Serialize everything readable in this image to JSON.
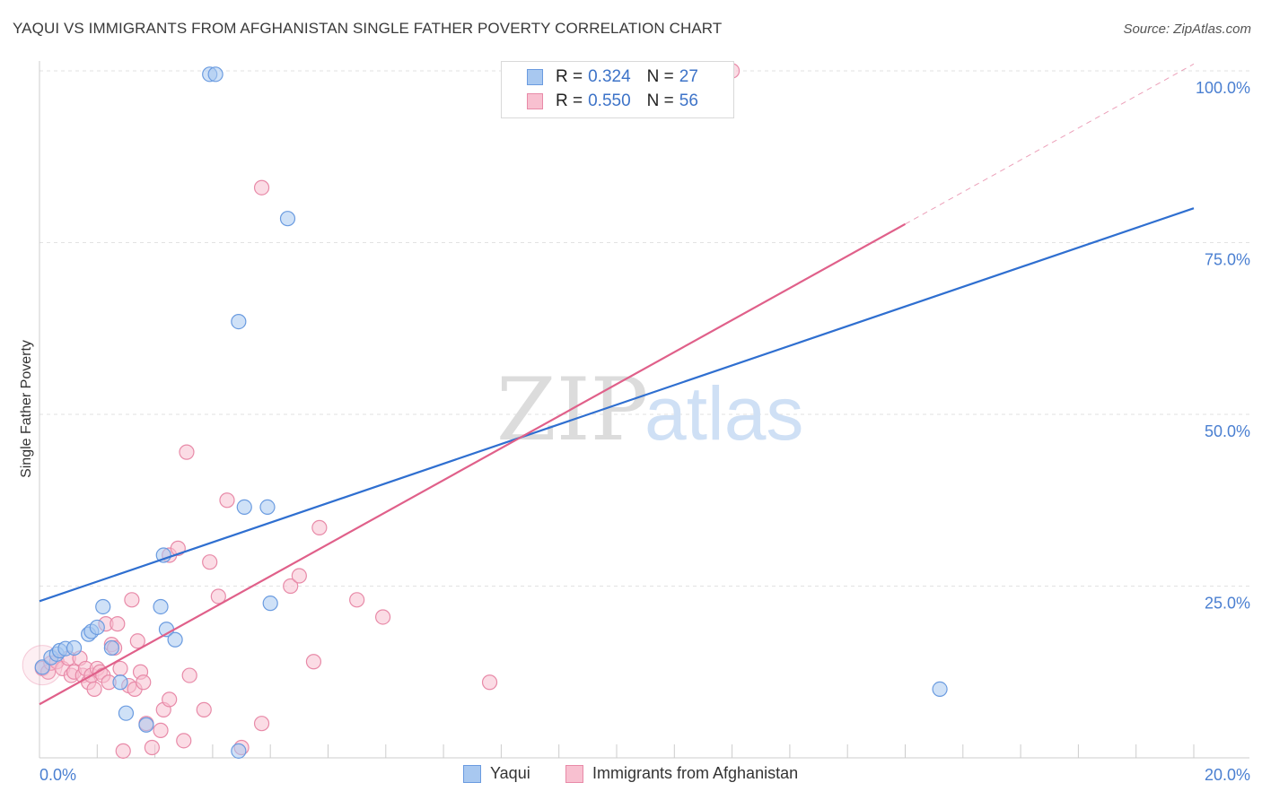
{
  "title": "YAQUI VS IMMIGRANTS FROM AFGHANISTAN SINGLE FATHER POVERTY CORRELATION CHART",
  "source": "Source: ZipAtlas.com",
  "watermark": {
    "zip": "ZIP",
    "atlas": "atlas"
  },
  "legend": {
    "rows": [
      {
        "r_label": "R =",
        "r_value": "0.324",
        "n_label": "N =",
        "n_value": "27",
        "color": "#a8c8f0",
        "border": "#6a9be0"
      },
      {
        "r_label": "R =",
        "r_value": "0.550",
        "n_label": "N =",
        "n_value": "56",
        "color": "#f8c0d0",
        "border": "#e88aa8"
      }
    ]
  },
  "bottom_legend": {
    "yaqui": "Yaqui",
    "afghanistan": "Immigrants from Afghanistan"
  },
  "colors": {
    "yaqui_fill": "#a8c8f0",
    "yaqui_stroke": "#6a9be0",
    "yaqui_line": "#2f6fd0",
    "afg_fill": "#f8c0d0",
    "afg_stroke": "#e88aa8",
    "afg_line": "#e0608a",
    "tick": "#4a7fd1"
  },
  "chart_data": {
    "type": "scatter",
    "title": "YAQUI VS IMMIGRANTS FROM AFGHANISTAN SINGLE FATHER POVERTY CORRELATION CHART",
    "xlabel": "",
    "ylabel": "Single Father Poverty",
    "xlim": [
      0,
      20
    ],
    "ylim": [
      0,
      100
    ],
    "x_ticks": [
      {
        "value": 0,
        "label": "0.0%"
      },
      {
        "value": 20,
        "label": "20.0%"
      }
    ],
    "y_ticks": [
      {
        "value": 25,
        "label": "25.0%"
      },
      {
        "value": 50,
        "label": "50.0%"
      },
      {
        "value": 75,
        "label": "75.0%"
      },
      {
        "value": 100,
        "label": "100.0%"
      }
    ],
    "series": [
      {
        "name": "Yaqui",
        "points": [
          [
            0.05,
            13.2
          ],
          [
            0.2,
            14.6
          ],
          [
            0.3,
            15.1
          ],
          [
            0.35,
            15.6
          ],
          [
            0.45,
            15.9
          ],
          [
            0.6,
            16.0
          ],
          [
            0.85,
            18.0
          ],
          [
            0.9,
            18.4
          ],
          [
            1.0,
            19.0
          ],
          [
            1.1,
            22.0
          ],
          [
            1.25,
            16.0
          ],
          [
            1.4,
            11.0
          ],
          [
            1.5,
            6.5
          ],
          [
            1.85,
            4.8
          ],
          [
            2.1,
            22.0
          ],
          [
            2.2,
            18.7
          ],
          [
            2.35,
            17.2
          ],
          [
            2.15,
            29.5
          ],
          [
            2.95,
            99.5
          ],
          [
            3.05,
            99.5
          ],
          [
            3.45,
            1.0
          ],
          [
            3.45,
            63.5
          ],
          [
            3.55,
            36.5
          ],
          [
            3.95,
            36.5
          ],
          [
            4.0,
            22.5
          ],
          [
            4.3,
            78.5
          ],
          [
            15.6,
            10.0
          ]
        ],
        "trend": {
          "x": [
            0,
            20
          ],
          "y": [
            22.8,
            80.0
          ]
        }
      },
      {
        "name": "Immigrants from Afghanistan",
        "points": [
          [
            0.05,
            13.0
          ],
          [
            0.15,
            12.5
          ],
          [
            0.2,
            13.8
          ],
          [
            0.3,
            14.0
          ],
          [
            0.4,
            13.0
          ],
          [
            0.5,
            14.5
          ],
          [
            0.55,
            12.0
          ],
          [
            0.6,
            12.5
          ],
          [
            0.7,
            14.5
          ],
          [
            0.75,
            12.0
          ],
          [
            0.8,
            13.0
          ],
          [
            0.85,
            11.0
          ],
          [
            0.9,
            12.0
          ],
          [
            0.95,
            10.0
          ],
          [
            1.0,
            13.0
          ],
          [
            1.05,
            12.5
          ],
          [
            1.1,
            12.0
          ],
          [
            1.15,
            19.5
          ],
          [
            1.2,
            11.0
          ],
          [
            1.25,
            16.5
          ],
          [
            1.3,
            16.0
          ],
          [
            1.35,
            19.5
          ],
          [
            1.4,
            13.0
          ],
          [
            1.45,
            1.0
          ],
          [
            1.55,
            10.5
          ],
          [
            1.6,
            23.0
          ],
          [
            1.65,
            10.0
          ],
          [
            1.7,
            17.0
          ],
          [
            1.75,
            12.5
          ],
          [
            1.8,
            11.0
          ],
          [
            1.85,
            5.0
          ],
          [
            1.95,
            1.5
          ],
          [
            2.1,
            4.0
          ],
          [
            2.15,
            7.0
          ],
          [
            2.25,
            8.5
          ],
          [
            2.25,
            29.5
          ],
          [
            2.4,
            30.5
          ],
          [
            2.5,
            2.5
          ],
          [
            2.55,
            44.5
          ],
          [
            2.6,
            12.0
          ],
          [
            2.85,
            7.0
          ],
          [
            2.95,
            28.5
          ],
          [
            3.1,
            23.5
          ],
          [
            3.25,
            37.5
          ],
          [
            3.5,
            1.5
          ],
          [
            3.85,
            5.0
          ],
          [
            3.85,
            83.0
          ],
          [
            4.35,
            25.0
          ],
          [
            4.5,
            26.5
          ],
          [
            4.75,
            14.0
          ],
          [
            4.85,
            33.5
          ],
          [
            5.5,
            23.0
          ],
          [
            5.95,
            20.5
          ],
          [
            7.8,
            11.0
          ],
          [
            10.45,
            100.0
          ],
          [
            12.0,
            100.0
          ]
        ],
        "trend": {
          "x": [
            0,
            15
          ],
          "y": [
            7.8,
            77.7
          ]
        },
        "trend_extension": {
          "x": [
            15,
            20
          ],
          "y": [
            77.7,
            101.0
          ]
        }
      }
    ]
  }
}
